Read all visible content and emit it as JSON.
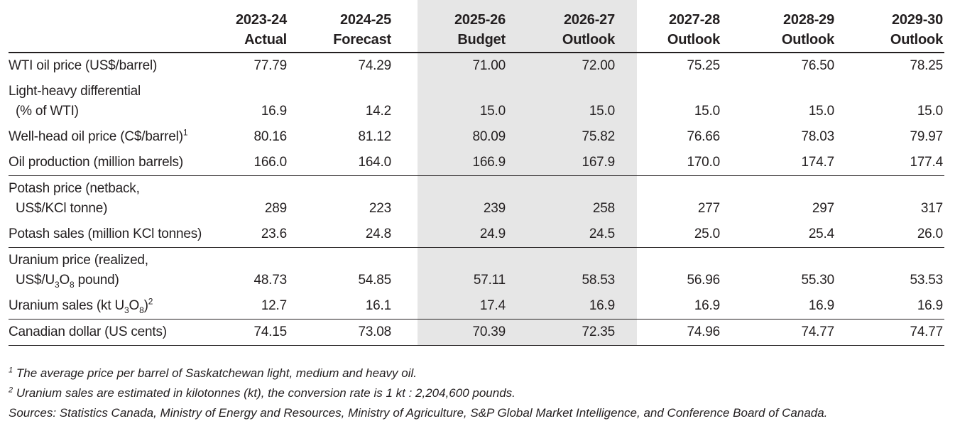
{
  "columns": [
    {
      "year": "2023-24",
      "kind": "Actual"
    },
    {
      "year": "2024-25",
      "kind": "Forecast"
    },
    {
      "year": "2025-26",
      "kind": "Budget"
    },
    {
      "year": "2026-27",
      "kind": "Outlook"
    },
    {
      "year": "2027-28",
      "kind": "Outlook"
    },
    {
      "year": "2028-29",
      "kind": "Outlook"
    },
    {
      "year": "2029-30",
      "kind": "Outlook"
    }
  ],
  "groups": [
    {
      "rows": [
        {
          "label": [
            "WTI oil price (US$/barrel)"
          ],
          "values": [
            "77.79",
            "74.29",
            "71.00",
            "72.00",
            "75.25",
            "76.50",
            "78.25"
          ]
        },
        {
          "label": [
            "Light-heavy differential",
            "(% of WTI)"
          ],
          "values": [
            "16.9",
            "14.2",
            "15.0",
            "15.0",
            "15.0",
            "15.0",
            "15.0"
          ]
        },
        {
          "label": [
            [
              {
                "text": "Well-head oil price (C$/barrel)"
              },
              {
                "sup": "1"
              }
            ]
          ],
          "values": [
            "80.16",
            "81.12",
            "80.09",
            "75.82",
            "76.66",
            "78.03",
            "79.97"
          ]
        },
        {
          "label": [
            "Oil production (million barrels)"
          ],
          "values": [
            "166.0",
            "164.0",
            "166.9",
            "167.9",
            "170.0",
            "174.7",
            "177.4"
          ]
        }
      ]
    },
    {
      "rows": [
        {
          "label": [
            "Potash price (netback,",
            "US$/KCl tonne)"
          ],
          "values": [
            "289",
            "223",
            "239",
            "258",
            "277",
            "297",
            "317"
          ]
        },
        {
          "label": [
            "Potash sales (million KCl tonnes)"
          ],
          "values": [
            "23.6",
            "24.8",
            "24.9",
            "24.5",
            "25.0",
            "25.4",
            "26.0"
          ]
        }
      ]
    },
    {
      "rows": [
        {
          "label": [
            "Uranium price (realized,",
            [
              {
                "text": "US$/U"
              },
              {
                "sub": "3"
              },
              {
                "text": "O"
              },
              {
                "sub": "8"
              },
              {
                "text": " pound)"
              }
            ]
          ],
          "values": [
            "48.73",
            "54.85",
            "57.11",
            "58.53",
            "56.96",
            "55.30",
            "53.53"
          ]
        },
        {
          "label": [
            [
              {
                "text": "Uranium sales (kt U"
              },
              {
                "sub": "3"
              },
              {
                "text": "O"
              },
              {
                "sub": "8"
              },
              {
                "text": ")"
              },
              {
                "sup": "2"
              }
            ]
          ],
          "values": [
            "12.7",
            "16.1",
            "17.4",
            "16.9",
            "16.9",
            "16.9",
            "16.9"
          ]
        }
      ]
    },
    {
      "rows": [
        {
          "label": [
            "Canadian dollar (US cents)"
          ],
          "values": [
            "74.15",
            "73.08",
            "70.39",
            "72.35",
            "74.96",
            "74.77",
            "74.77"
          ]
        }
      ]
    }
  ],
  "footnotes": [
    {
      "mark": "1",
      "text": "The average price per barrel of Saskatchewan light, medium and heavy oil."
    },
    {
      "mark": "2",
      "text": "Uranium sales are estimated in kilotonnes (kt), the conversion rate is 1 kt : 2,204,600 pounds."
    }
  ],
  "sources": "Sources: Statistics Canada, Ministry of Energy and Resources, Ministry of Agriculture, S&P Global Market Intelligence, and Conference Board of Canada."
}
